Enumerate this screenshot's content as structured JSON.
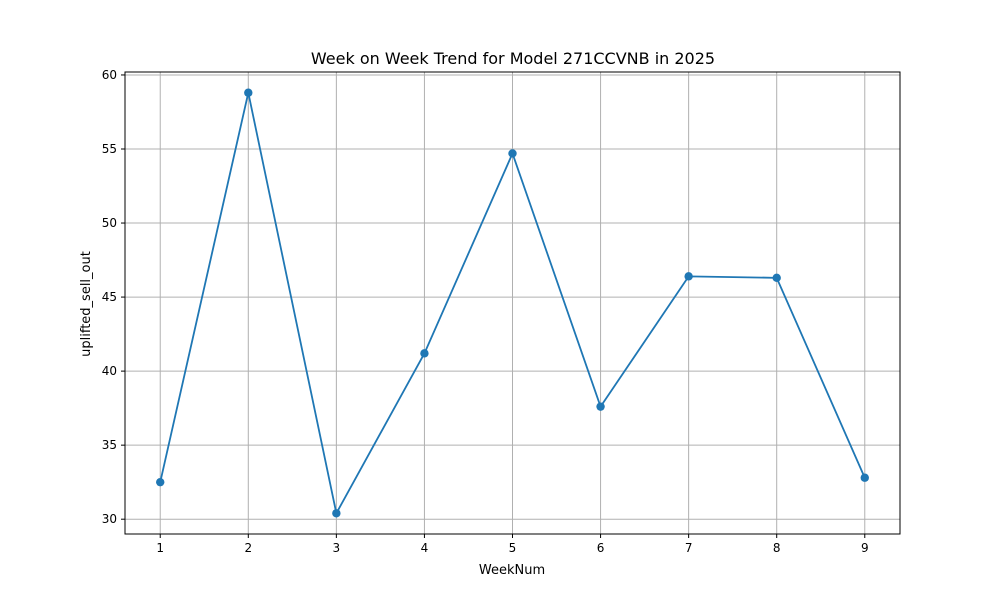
{
  "chart_data": {
    "type": "line",
    "title": "Week on Week Trend for Model 271CCVNB in 2025",
    "xlabel": "WeekNum",
    "ylabel": "uplifted_sell_out",
    "x": [
      1,
      2,
      3,
      4,
      5,
      6,
      7,
      8,
      9
    ],
    "series": [
      {
        "values": [
          32.5,
          58.8,
          30.4,
          41.2,
          54.7,
          37.6,
          46.4,
          46.3,
          32.8
        ],
        "color": "#1f77b4",
        "marker": "circle"
      }
    ],
    "xticks": [
      "1",
      "2",
      "3",
      "4",
      "5",
      "6",
      "7",
      "8",
      "9"
    ],
    "yticks": [
      "30",
      "35",
      "40",
      "45",
      "50",
      "55",
      "60"
    ],
    "xlim": [
      0.6,
      9.4
    ],
    "ylim": [
      29.0,
      60.2
    ],
    "grid": true,
    "legend": "none"
  }
}
